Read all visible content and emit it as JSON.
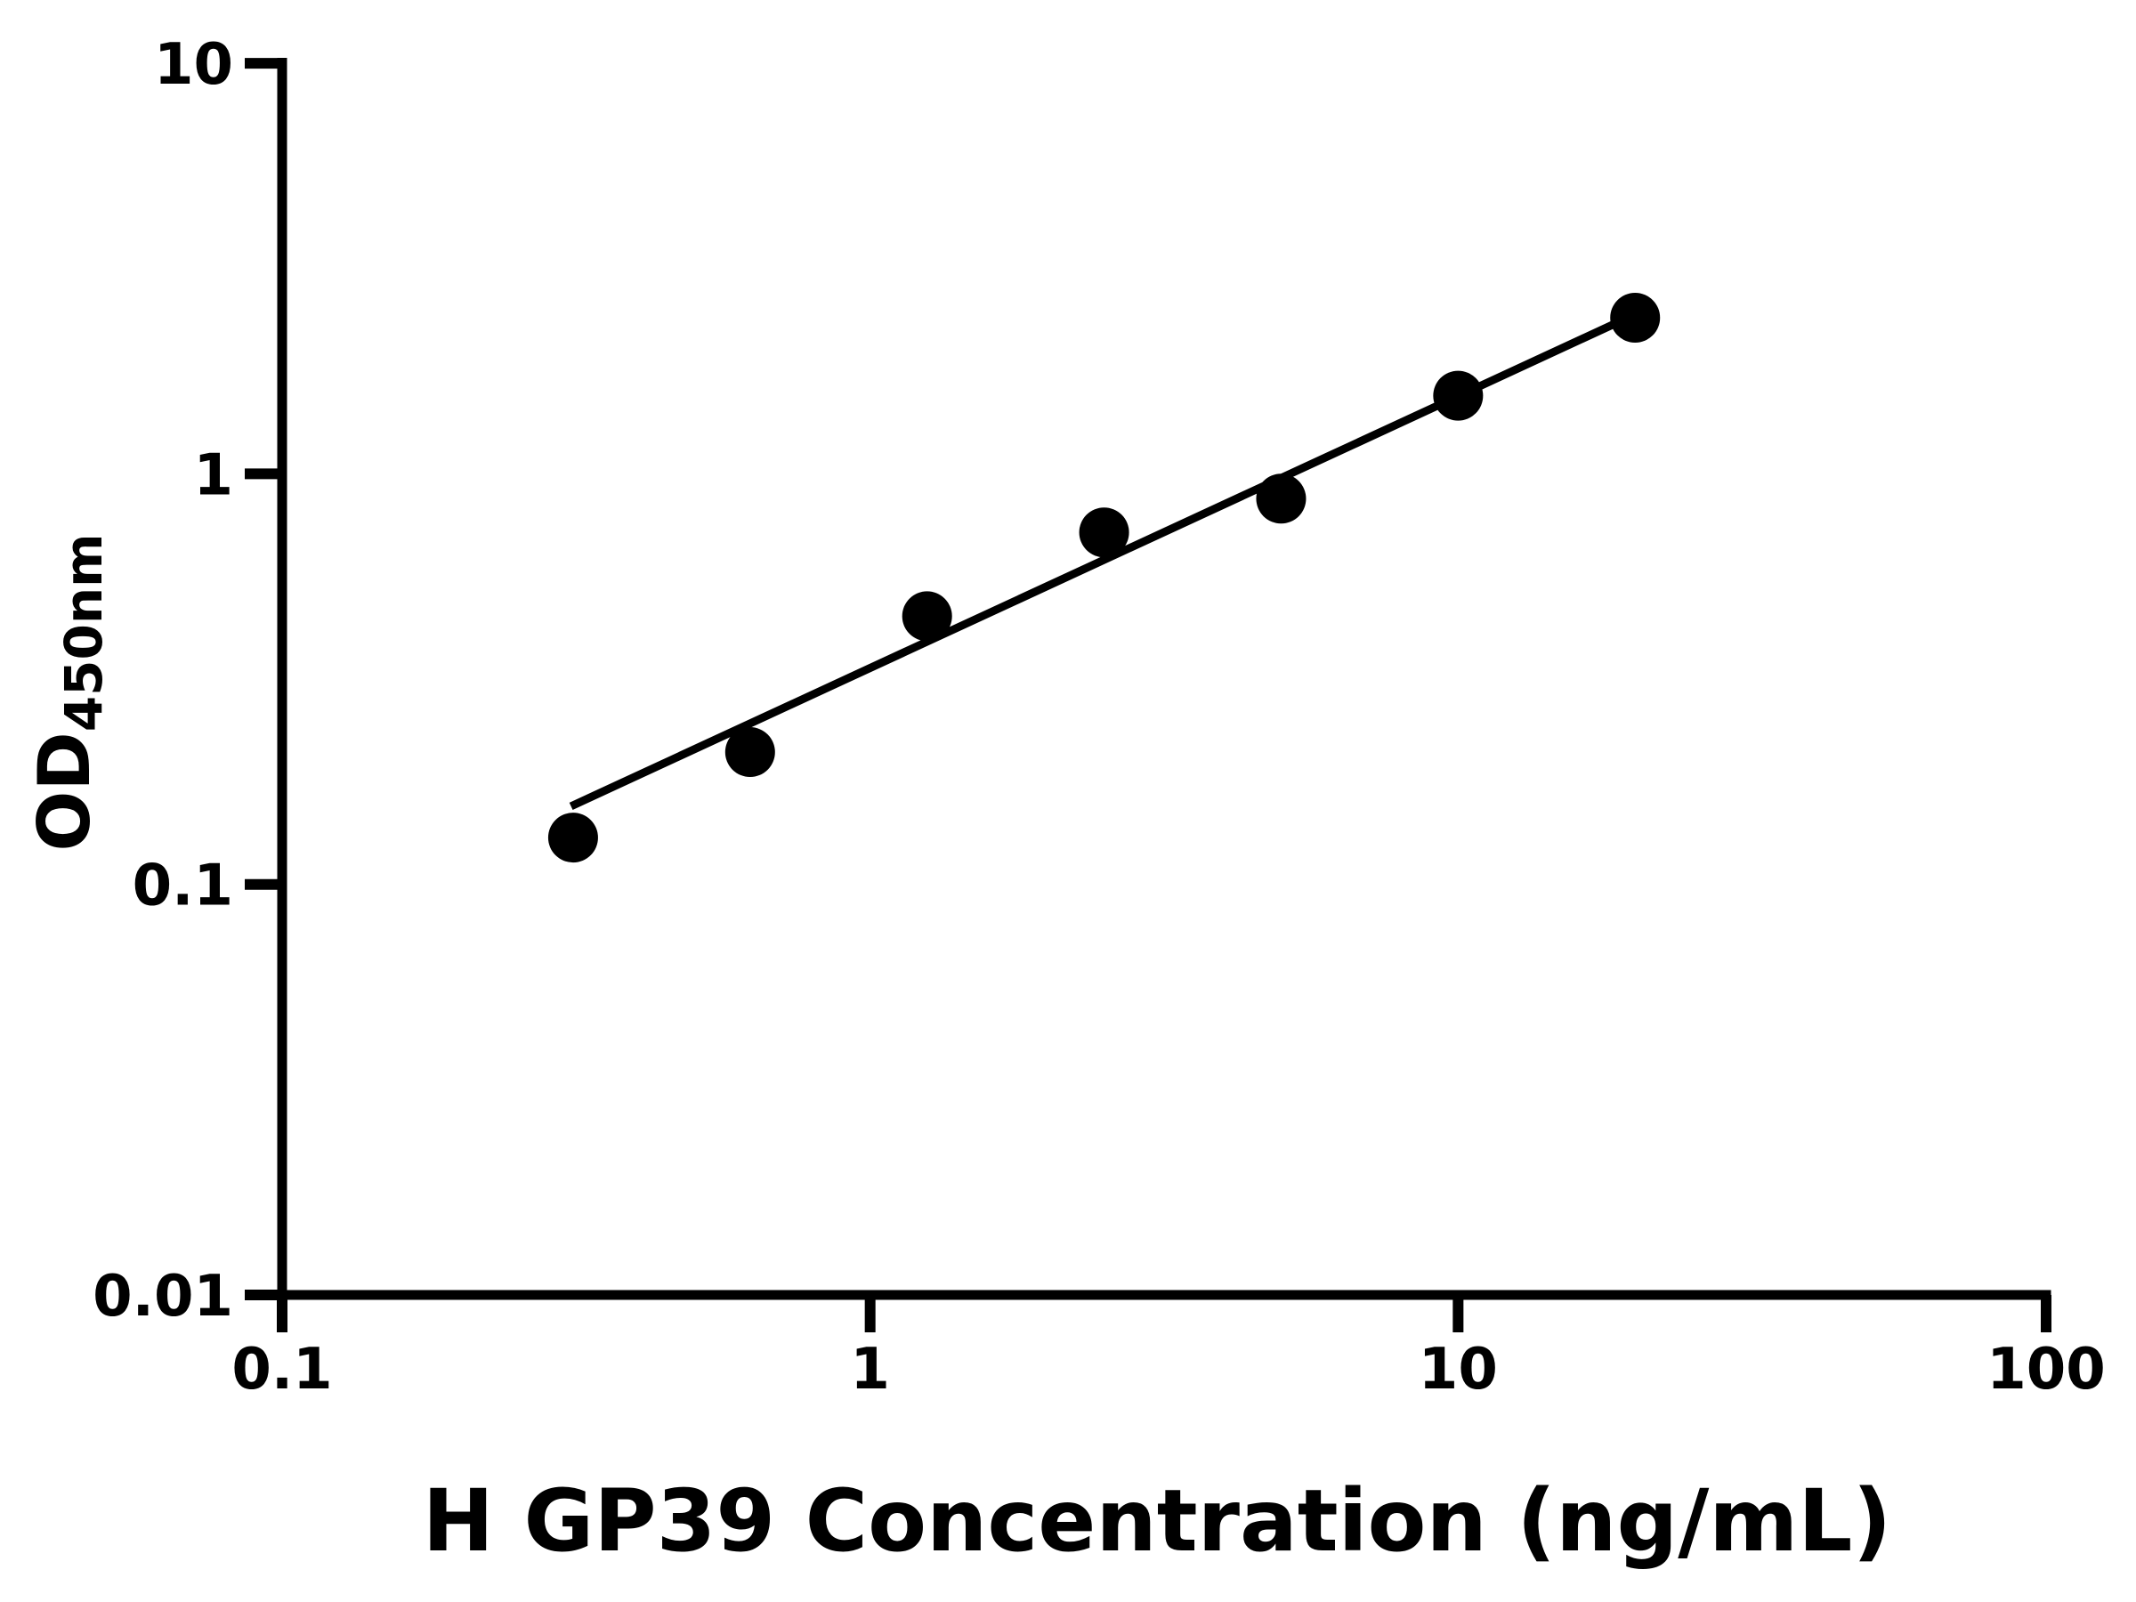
{
  "page": {
    "background_color": "#ffffff"
  },
  "chart_data": {
    "type": "scatter",
    "title": "",
    "xlabel": "H GP39 Concentration (ng/mL)",
    "ylabel_main": "OD",
    "ylabel_sub": "450nm",
    "x_scale": "log",
    "y_scale": "log",
    "xlim": [
      0.1,
      100
    ],
    "ylim": [
      0.01,
      10
    ],
    "x_ticks": [
      {
        "value": 0.1,
        "label": "0.1"
      },
      {
        "value": 1,
        "label": "1"
      },
      {
        "value": 10,
        "label": "10"
      },
      {
        "value": 100,
        "label": "100"
      }
    ],
    "y_ticks": [
      {
        "value": 0.01,
        "label": "0.01"
      },
      {
        "value": 0.1,
        "label": "0.1"
      },
      {
        "value": 1,
        "label": "1"
      },
      {
        "value": 10,
        "label": "10"
      }
    ],
    "grid": false,
    "legend": "none",
    "marker": {
      "shape": "circle",
      "color": "#000000"
    },
    "series": [
      {
        "points": [
          {
            "x": 0.3125,
            "y": 0.13
          },
          {
            "x": 0.625,
            "y": 0.21
          },
          {
            "x": 1.25,
            "y": 0.45
          },
          {
            "x": 2.5,
            "y": 0.72
          },
          {
            "x": 5,
            "y": 0.87
          },
          {
            "x": 10,
            "y": 1.55
          },
          {
            "x": 20,
            "y": 2.4
          }
        ]
      }
    ],
    "fit_line": {
      "x1": 0.31,
      "y1": 0.155,
      "x2": 19.8,
      "y2": 2.43
    },
    "axis_color": "#000000",
    "text_color": "#000000"
  }
}
